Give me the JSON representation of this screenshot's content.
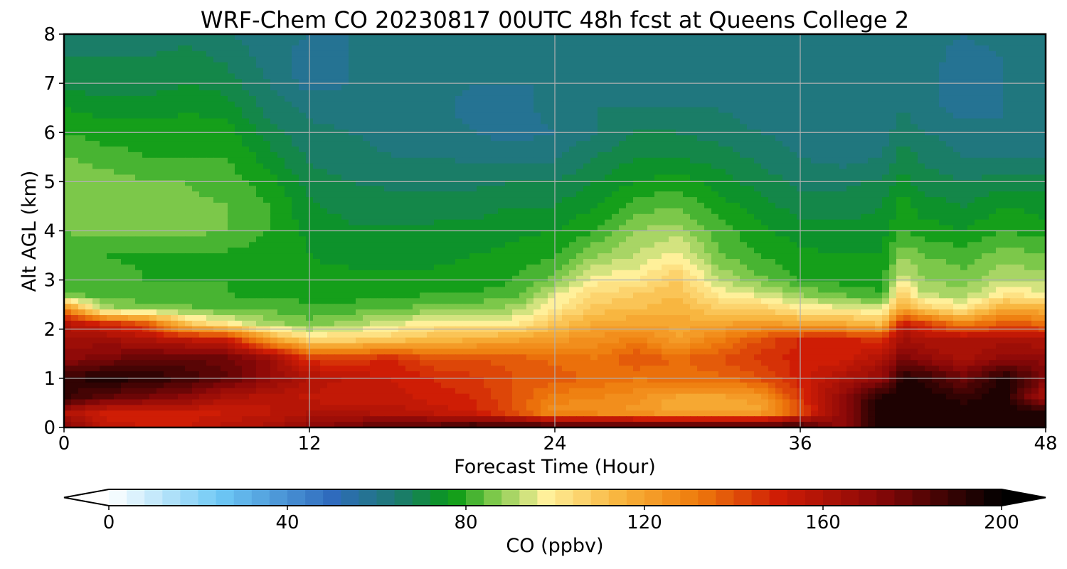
{
  "chart_data": {
    "type": "heatmap",
    "title": "WRF-Chem CO  20230817 00UTC 48h fcst at Queens College 2",
    "xlabel": "Forecast Time (Hour)",
    "ylabel": "Alt AGL (km)",
    "xlim": [
      0,
      48
    ],
    "ylim": [
      0,
      8
    ],
    "xticks": [
      0,
      12,
      24,
      36,
      48
    ],
    "yticks": [
      0,
      1,
      2,
      3,
      4,
      5,
      6,
      7,
      8
    ],
    "grid": true,
    "colorbar": {
      "label": "CO  (ppbv)",
      "range": [
        0,
        200
      ],
      "ticks": [
        0,
        40,
        80,
        120,
        160,
        200
      ],
      "extend": "both",
      "stops": [
        {
          "value": 0,
          "color": "#ffffff"
        },
        {
          "value": 25,
          "color": "#6ec8f5"
        },
        {
          "value": 50,
          "color": "#2f6bbd"
        },
        {
          "value": 65,
          "color": "#1c7a6e"
        },
        {
          "value": 77,
          "color": "#089a14"
        },
        {
          "value": 86,
          "color": "#7cc84a"
        },
        {
          "value": 98,
          "color": "#fff09a"
        },
        {
          "value": 115,
          "color": "#f8b23a"
        },
        {
          "value": 132,
          "color": "#ee7a0c"
        },
        {
          "value": 150,
          "color": "#cf1d05"
        },
        {
          "value": 172,
          "color": "#8a0808"
        },
        {
          "value": 200,
          "color": "#000000"
        }
      ]
    },
    "hours": [
      0,
      2,
      4,
      6,
      8,
      10,
      12,
      14,
      16,
      18,
      20,
      22,
      24,
      26,
      28,
      30,
      32,
      34,
      36,
      38,
      40,
      41,
      42,
      44,
      46,
      48
    ],
    "altitudes_km": [
      0,
      0.3,
      0.6,
      1,
      1.4,
      1.8,
      2.1,
      2.4,
      2.7,
      3,
      3.5,
      4,
      4.5,
      5,
      5.5,
      6,
      6.5,
      7,
      7.5,
      8
    ],
    "values_ppbv": [
      [
        175,
        155,
        152,
        152,
        158,
        162,
        170,
        178,
        183,
        185,
        192,
        192,
        192,
        192,
        192,
        192,
        192,
        192,
        192,
        170,
        195,
        195,
        195,
        195,
        195,
        195
      ],
      [
        160,
        150,
        148,
        150,
        152,
        155,
        160,
        160,
        158,
        155,
        150,
        140,
        125,
        125,
        122,
        118,
        118,
        118,
        140,
        170,
        195,
        195,
        195,
        195,
        195,
        195
      ],
      [
        190,
        180,
        175,
        170,
        160,
        158,
        155,
        152,
        155,
        150,
        148,
        140,
        130,
        128,
        125,
        118,
        118,
        122,
        145,
        170,
        195,
        195,
        195,
        190,
        195,
        160
      ],
      [
        190,
        195,
        192,
        188,
        180,
        170,
        160,
        155,
        152,
        148,
        145,
        140,
        138,
        135,
        132,
        135,
        135,
        140,
        150,
        160,
        170,
        195,
        190,
        178,
        195,
        175
      ],
      [
        170,
        175,
        180,
        180,
        178,
        168,
        145,
        145,
        148,
        140,
        140,
        138,
        135,
        132,
        140,
        135,
        140,
        145,
        150,
        150,
        160,
        175,
        170,
        162,
        170,
        170
      ],
      [
        165,
        165,
        160,
        155,
        150,
        120,
        105,
        105,
        108,
        112,
        115,
        118,
        122,
        125,
        130,
        120,
        130,
        140,
        148,
        150,
        145,
        165,
        160,
        160,
        162,
        160
      ],
      [
        160,
        150,
        140,
        110,
        100,
        90,
        85,
        90,
        95,
        100,
        100,
        100,
        110,
        118,
        120,
        118,
        120,
        122,
        120,
        118,
        112,
        155,
        145,
        130,
        140,
        135
      ],
      [
        130,
        90,
        88,
        85,
        84,
        83,
        82,
        82,
        84,
        86,
        88,
        90,
        100,
        110,
        112,
        115,
        108,
        108,
        100,
        98,
        95,
        120,
        110,
        100,
        120,
        115
      ],
      [
        84,
        82,
        80,
        80,
        80,
        79,
        78,
        78,
        79,
        80,
        80,
        82,
        95,
        105,
        108,
        112,
        100,
        95,
        88,
        84,
        80,
        108,
        92,
        90,
        100,
        98
      ],
      [
        82,
        82,
        80,
        80,
        80,
        79,
        77,
        77,
        77,
        77,
        78,
        80,
        85,
        98,
        100,
        108,
        92,
        85,
        80,
        78,
        78,
        95,
        88,
        86,
        92,
        90
      ],
      [
        80,
        80,
        79,
        80,
        79,
        78,
        76,
        75,
        75,
        75,
        76,
        77,
        80,
        88,
        92,
        98,
        85,
        80,
        77,
        76,
        76,
        88,
        84,
        82,
        86,
        84
      ],
      [
        84,
        86,
        85,
        85,
        84,
        80,
        75,
        73,
        73,
        73,
        74,
        75,
        76,
        80,
        88,
        90,
        82,
        77,
        74,
        73,
        74,
        80,
        78,
        76,
        80,
        78
      ],
      [
        86,
        88,
        86,
        85,
        84,
        80,
        73,
        70,
        70,
        70,
        70,
        72,
        72,
        76,
        82,
        84,
        78,
        74,
        70,
        70,
        72,
        78,
        74,
        72,
        76,
        74
      ],
      [
        88,
        86,
        84,
        84,
        82,
        78,
        70,
        68,
        67,
        67,
        67,
        68,
        68,
        72,
        76,
        78,
        74,
        70,
        67,
        67,
        69,
        74,
        70,
        68,
        70,
        70
      ],
      [
        84,
        82,
        80,
        80,
        80,
        74,
        67,
        65,
        64,
        64,
        63,
        63,
        63,
        68,
        72,
        72,
        70,
        67,
        64,
        62,
        64,
        70,
        67,
        64,
        64,
        64
      ],
      [
        80,
        78,
        78,
        79,
        78,
        70,
        65,
        64,
        63,
        63,
        60,
        58,
        60,
        64,
        68,
        68,
        66,
        64,
        62,
        60,
        62,
        66,
        64,
        62,
        60,
        62
      ],
      [
        76,
        74,
        74,
        75,
        74,
        66,
        63,
        62,
        62,
        62,
        58,
        58,
        62,
        64,
        64,
        64,
        64,
        62,
        62,
        62,
        62,
        64,
        62,
        58,
        60,
        62
      ],
      [
        70,
        70,
        70,
        72,
        70,
        64,
        58,
        60,
        62,
        62,
        60,
        60,
        60,
        62,
        62,
        62,
        62,
        62,
        62,
        62,
        62,
        62,
        62,
        56,
        60,
        62
      ],
      [
        68,
        68,
        68,
        70,
        67,
        62,
        58,
        60,
        62,
        62,
        62,
        60,
        60,
        62,
        62,
        60,
        62,
        62,
        62,
        60,
        62,
        62,
        62,
        58,
        60,
        62
      ],
      [
        66,
        66,
        66,
        66,
        64,
        62,
        60,
        60,
        62,
        62,
        62,
        62,
        60,
        62,
        62,
        62,
        62,
        62,
        62,
        62,
        62,
        62,
        62,
        60,
        62,
        62
      ]
    ]
  }
}
